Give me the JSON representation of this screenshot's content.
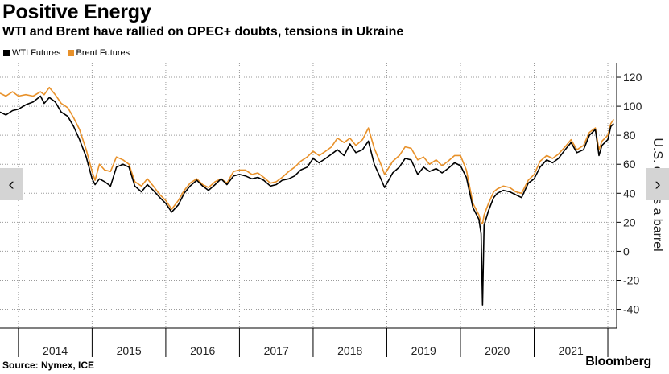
{
  "chart_data": {
    "type": "line",
    "title": "Positive Energy",
    "subtitle": "WTI and Brent have rallied on OPEC+ doubts, tensions in Ukraine",
    "ylabel": "U.S. dollars a barrel",
    "xlabel": "",
    "ylim": [
      -53,
      130
    ],
    "yticks": [
      -40,
      -20,
      0,
      20,
      40,
      60,
      80,
      100,
      120
    ],
    "xlim": [
      2013.75,
      2022.12
    ],
    "xticks": [
      "2014",
      "2015",
      "2016",
      "2017",
      "2018",
      "2019",
      "2020",
      "2021"
    ],
    "grid": true,
    "legend_position": "top-left",
    "series": [
      {
        "name": "WTI Futures",
        "color": "#000000",
        "points": [
          [
            2013.75,
            96
          ],
          [
            2013.83,
            94
          ],
          [
            2013.92,
            97
          ],
          [
            2014.0,
            98
          ],
          [
            2014.1,
            101
          ],
          [
            2014.2,
            103
          ],
          [
            2014.3,
            107
          ],
          [
            2014.35,
            102
          ],
          [
            2014.42,
            106
          ],
          [
            2014.5,
            103
          ],
          [
            2014.58,
            96
          ],
          [
            2014.67,
            93
          ],
          [
            2014.75,
            86
          ],
          [
            2014.83,
            77
          ],
          [
            2014.92,
            65
          ],
          [
            2015.0,
            50
          ],
          [
            2015.04,
            46
          ],
          [
            2015.1,
            50
          ],
          [
            2015.17,
            48
          ],
          [
            2015.25,
            45
          ],
          [
            2015.33,
            58
          ],
          [
            2015.42,
            60
          ],
          [
            2015.5,
            58
          ],
          [
            2015.58,
            45
          ],
          [
            2015.67,
            41
          ],
          [
            2015.75,
            46
          ],
          [
            2015.83,
            42
          ],
          [
            2015.92,
            37
          ],
          [
            2016.0,
            33
          ],
          [
            2016.08,
            27
          ],
          [
            2016.17,
            32
          ],
          [
            2016.25,
            40
          ],
          [
            2016.33,
            45
          ],
          [
            2016.42,
            49
          ],
          [
            2016.5,
            45
          ],
          [
            2016.58,
            42
          ],
          [
            2016.67,
            46
          ],
          [
            2016.75,
            50
          ],
          [
            2016.83,
            46
          ],
          [
            2016.92,
            52
          ],
          [
            2017.0,
            53
          ],
          [
            2017.08,
            52
          ],
          [
            2017.17,
            50
          ],
          [
            2017.25,
            51
          ],
          [
            2017.33,
            49
          ],
          [
            2017.42,
            45
          ],
          [
            2017.5,
            46
          ],
          [
            2017.58,
            49
          ],
          [
            2017.67,
            50
          ],
          [
            2017.75,
            52
          ],
          [
            2017.83,
            56
          ],
          [
            2017.92,
            58
          ],
          [
            2018.0,
            64
          ],
          [
            2018.08,
            61
          ],
          [
            2018.17,
            64
          ],
          [
            2018.25,
            67
          ],
          [
            2018.33,
            70
          ],
          [
            2018.42,
            66
          ],
          [
            2018.5,
            74
          ],
          [
            2018.58,
            68
          ],
          [
            2018.67,
            70
          ],
          [
            2018.75,
            76
          ],
          [
            2018.83,
            60
          ],
          [
            2018.92,
            50
          ],
          [
            2018.97,
            44
          ],
          [
            2019.08,
            54
          ],
          [
            2019.17,
            58
          ],
          [
            2019.25,
            64
          ],
          [
            2019.33,
            63
          ],
          [
            2019.42,
            53
          ],
          [
            2019.5,
            58
          ],
          [
            2019.58,
            55
          ],
          [
            2019.67,
            57
          ],
          [
            2019.75,
            54
          ],
          [
            2019.83,
            57
          ],
          [
            2019.92,
            61
          ],
          [
            2020.0,
            59
          ],
          [
            2020.08,
            51
          ],
          [
            2020.17,
            30
          ],
          [
            2020.25,
            22
          ],
          [
            2020.28,
            12
          ],
          [
            2020.3,
            -37
          ],
          [
            2020.32,
            18
          ],
          [
            2020.38,
            28
          ],
          [
            2020.45,
            37
          ],
          [
            2020.5,
            40
          ],
          [
            2020.58,
            42
          ],
          [
            2020.67,
            41
          ],
          [
            2020.75,
            39
          ],
          [
            2020.83,
            37
          ],
          [
            2020.92,
            47
          ],
          [
            2021.0,
            50
          ],
          [
            2021.08,
            58
          ],
          [
            2021.17,
            63
          ],
          [
            2021.25,
            61
          ],
          [
            2021.33,
            64
          ],
          [
            2021.42,
            70
          ],
          [
            2021.5,
            75
          ],
          [
            2021.58,
            68
          ],
          [
            2021.67,
            70
          ],
          [
            2021.75,
            80
          ],
          [
            2021.83,
            84
          ],
          [
            2021.88,
            66
          ],
          [
            2021.92,
            73
          ],
          [
            2022.0,
            77
          ],
          [
            2022.04,
            86
          ],
          [
            2022.08,
            88
          ]
        ]
      },
      {
        "name": "Brent Futures",
        "color": "#e8912a",
        "points": [
          [
            2013.75,
            109
          ],
          [
            2013.83,
            107
          ],
          [
            2013.92,
            110
          ],
          [
            2014.0,
            107
          ],
          [
            2014.1,
            108
          ],
          [
            2014.2,
            107
          ],
          [
            2014.3,
            110
          ],
          [
            2014.35,
            108
          ],
          [
            2014.42,
            113
          ],
          [
            2014.5,
            108
          ],
          [
            2014.58,
            102
          ],
          [
            2014.67,
            99
          ],
          [
            2014.75,
            92
          ],
          [
            2014.83,
            84
          ],
          [
            2014.92,
            70
          ],
          [
            2015.0,
            55
          ],
          [
            2015.04,
            49
          ],
          [
            2015.1,
            60
          ],
          [
            2015.17,
            56
          ],
          [
            2015.25,
            55
          ],
          [
            2015.33,
            65
          ],
          [
            2015.42,
            63
          ],
          [
            2015.5,
            60
          ],
          [
            2015.58,
            48
          ],
          [
            2015.67,
            45
          ],
          [
            2015.75,
            50
          ],
          [
            2015.83,
            45
          ],
          [
            2015.92,
            39
          ],
          [
            2016.0,
            35
          ],
          [
            2016.08,
            29
          ],
          [
            2016.17,
            35
          ],
          [
            2016.25,
            42
          ],
          [
            2016.33,
            47
          ],
          [
            2016.42,
            50
          ],
          [
            2016.5,
            46
          ],
          [
            2016.58,
            44
          ],
          [
            2016.67,
            48
          ],
          [
            2016.75,
            50
          ],
          [
            2016.83,
            47
          ],
          [
            2016.92,
            55
          ],
          [
            2017.0,
            56
          ],
          [
            2017.08,
            56
          ],
          [
            2017.17,
            53
          ],
          [
            2017.25,
            54
          ],
          [
            2017.33,
            51
          ],
          [
            2017.42,
            47
          ],
          [
            2017.5,
            48
          ],
          [
            2017.58,
            51
          ],
          [
            2017.67,
            55
          ],
          [
            2017.75,
            58
          ],
          [
            2017.83,
            62
          ],
          [
            2017.92,
            65
          ],
          [
            2018.0,
            69
          ],
          [
            2018.08,
            66
          ],
          [
            2018.17,
            69
          ],
          [
            2018.25,
            72
          ],
          [
            2018.33,
            78
          ],
          [
            2018.42,
            75
          ],
          [
            2018.5,
            78
          ],
          [
            2018.58,
            73
          ],
          [
            2018.67,
            77
          ],
          [
            2018.75,
            85
          ],
          [
            2018.83,
            71
          ],
          [
            2018.92,
            60
          ],
          [
            2018.97,
            53
          ],
          [
            2019.08,
            62
          ],
          [
            2019.17,
            66
          ],
          [
            2019.25,
            72
          ],
          [
            2019.33,
            71
          ],
          [
            2019.42,
            63
          ],
          [
            2019.5,
            65
          ],
          [
            2019.58,
            60
          ],
          [
            2019.67,
            63
          ],
          [
            2019.75,
            59
          ],
          [
            2019.83,
            62
          ],
          [
            2019.92,
            66
          ],
          [
            2020.0,
            66
          ],
          [
            2020.08,
            56
          ],
          [
            2020.17,
            33
          ],
          [
            2020.25,
            25
          ],
          [
            2020.28,
            20
          ],
          [
            2020.3,
            19
          ],
          [
            2020.32,
            25
          ],
          [
            2020.38,
            33
          ],
          [
            2020.45,
            41
          ],
          [
            2020.5,
            43
          ],
          [
            2020.58,
            45
          ],
          [
            2020.67,
            44
          ],
          [
            2020.75,
            41
          ],
          [
            2020.83,
            40
          ],
          [
            2020.92,
            49
          ],
          [
            2021.0,
            53
          ],
          [
            2021.08,
            62
          ],
          [
            2021.17,
            66
          ],
          [
            2021.25,
            64
          ],
          [
            2021.33,
            67
          ],
          [
            2021.42,
            72
          ],
          [
            2021.5,
            77
          ],
          [
            2021.58,
            70
          ],
          [
            2021.67,
            73
          ],
          [
            2021.75,
            82
          ],
          [
            2021.83,
            85
          ],
          [
            2021.88,
            70
          ],
          [
            2021.92,
            76
          ],
          [
            2022.0,
            80
          ],
          [
            2022.04,
            88
          ],
          [
            2022.08,
            91
          ]
        ]
      }
    ]
  },
  "header": {
    "title": "Positive Energy",
    "subtitle": "WTI and Brent have rallied on OPEC+ doubts, tensions in Ukraine"
  },
  "legend": {
    "items": [
      {
        "label": "WTI Futures",
        "color": "#000000"
      },
      {
        "label": "Brent Futures",
        "color": "#e8912a"
      }
    ]
  },
  "footer": {
    "source": "Source: Nymex, ICE",
    "brand": "Bloomberg"
  },
  "navigation": {
    "prev_icon": "chevron-left-icon",
    "next_icon": "chevron-right-icon",
    "prev_glyph": "‹",
    "next_glyph": "›"
  }
}
